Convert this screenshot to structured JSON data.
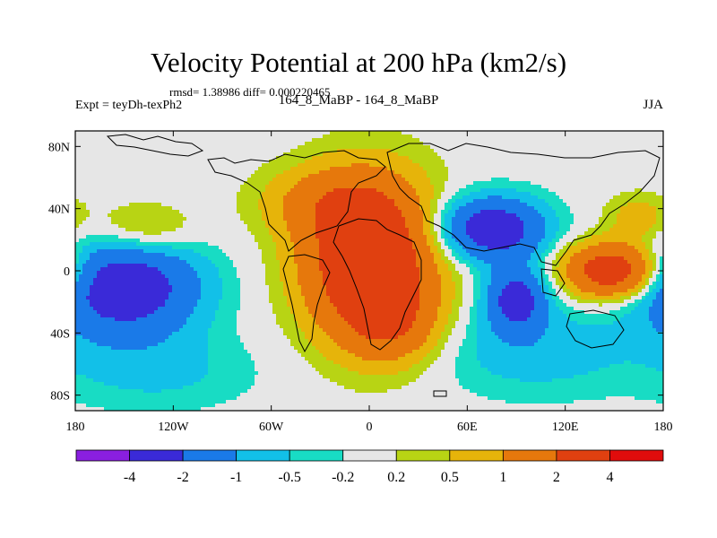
{
  "chart_data": {
    "type": "heatmap",
    "title": "Velocity Potential at 200 hPa (km2/s)",
    "stats_text": "rmsd= 1.38986  diff= 0.000220465",
    "left_label": "Expt = teyDh-texPh2",
    "center_label": "164_8_MaBP - 164_8_MaBP",
    "right_label": "JJA",
    "x_ticks": [
      {
        "value": -180,
        "label": "180"
      },
      {
        "value": -120,
        "label": "120W"
      },
      {
        "value": -60,
        "label": "60W"
      },
      {
        "value": 0,
        "label": "0"
      },
      {
        "value": 60,
        "label": "60E"
      },
      {
        "value": 120,
        "label": "120E"
      },
      {
        "value": 180,
        "label": "180"
      }
    ],
    "y_ticks": [
      {
        "value": 80,
        "label": "80N"
      },
      {
        "value": 40,
        "label": "40N"
      },
      {
        "value": 0,
        "label": "0"
      },
      {
        "value": -40,
        "label": "40S"
      },
      {
        "value": -80,
        "label": "80S"
      }
    ],
    "xlim": [
      -180,
      180
    ],
    "ylim": [
      -90,
      90
    ],
    "contour_levels": [
      "-4",
      "-2",
      "-1",
      "-0.5",
      "-0.2",
      "0.2",
      "0.5",
      "1",
      "2",
      "4"
    ],
    "colors": [
      "#8a1fe0",
      "#3a2ad8",
      "#1a7ae8",
      "#12c0e8",
      "#18dcc4",
      "#e6e6e6",
      "#b8d414",
      "#e6b40a",
      "#e6780c",
      "#e04010",
      "#e00c0c"
    ],
    "field_blobs": [
      {
        "lon": 0,
        "lat": 8,
        "rlon": 40,
        "rlat": 50,
        "value": 3.5
      },
      {
        "lon": 15,
        "lat": -35,
        "rlon": 30,
        "rlat": 25,
        "value": 1.2
      },
      {
        "lon": -30,
        "lat": 45,
        "rlon": 40,
        "rlat": 22,
        "value": 0.9
      },
      {
        "lon": -140,
        "lat": 25,
        "rlon": 32,
        "rlat": 18,
        "value": 1.1
      },
      {
        "lon": 150,
        "lat": 0,
        "rlon": 30,
        "rlat": 18,
        "value": 3.2
      },
      {
        "lon": 165,
        "lat": 35,
        "rlon": 20,
        "rlat": 15,
        "value": 0.8
      },
      {
        "lon": -150,
        "lat": -10,
        "rlon": 45,
        "rlat": 32,
        "value": -3.0
      },
      {
        "lon": 75,
        "lat": 27,
        "rlon": 32,
        "rlat": 20,
        "value": -3.0
      },
      {
        "lon": 90,
        "lat": -18,
        "rlon": 18,
        "rlat": 20,
        "value": -2.5
      },
      {
        "lon": 100,
        "lat": -50,
        "rlon": 60,
        "rlat": 30,
        "value": -0.8
      },
      {
        "lon": -130,
        "lat": -65,
        "rlon": 60,
        "rlat": 25,
        "value": -0.6
      }
    ],
    "background_value": 0.0
  }
}
